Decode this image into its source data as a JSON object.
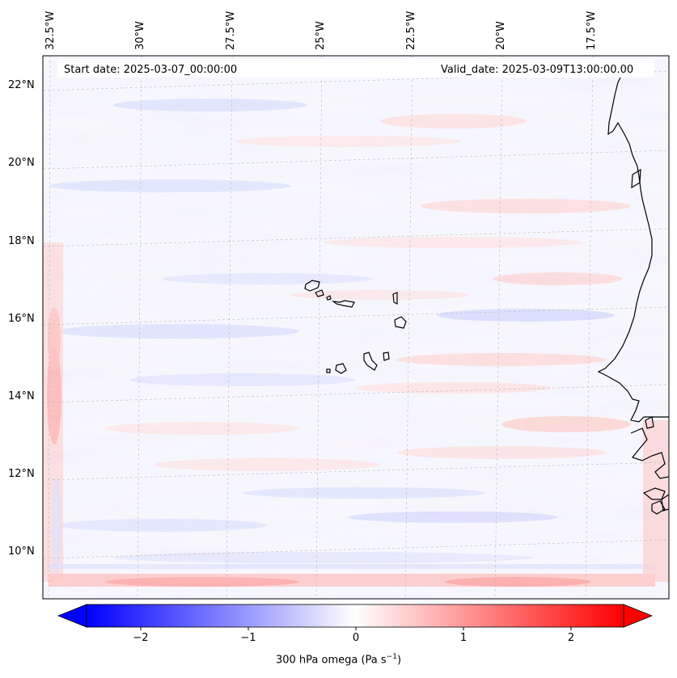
{
  "header": {
    "start_date": "Start date: 2025-03-07_00:00:00",
    "valid_date": "Valid_date: 2025-03-09T13:00:00.00"
  },
  "axes": {
    "lon_labels": [
      "32.5°W",
      "30°W",
      "27.5°W",
      "25°W",
      "22.5°W",
      "20°W",
      "17.5°W"
    ],
    "lat_labels": [
      "22°N",
      "20°N",
      "18°N",
      "16°N",
      "14°N",
      "12°N",
      "10°N"
    ]
  },
  "colorbar": {
    "ticks": [
      "−2",
      "−1",
      "0",
      "1",
      "2"
    ],
    "tick_values": [
      -2,
      -1,
      0,
      1,
      2
    ],
    "range": [
      -2.5,
      2.5
    ],
    "colormap": "bwr",
    "low_color": "#0000ff",
    "mid_color": "#ffffff",
    "high_color": "#ff0000",
    "label": "300 hPa omega (Pa s",
    "label_superscript": "−1",
    "label_suffix": ")"
  },
  "chart_data": {
    "type": "heatmap",
    "variable": "300 hPa omega",
    "units": "Pa s^-1",
    "lon_range_deg": [
      -33.3,
      -15.8
    ],
    "lat_range_deg": [
      8.9,
      22.7
    ],
    "value_range": [
      -2.5,
      2.5
    ],
    "features": [
      "coastline of West Africa",
      "Cape Verde islands"
    ]
  }
}
